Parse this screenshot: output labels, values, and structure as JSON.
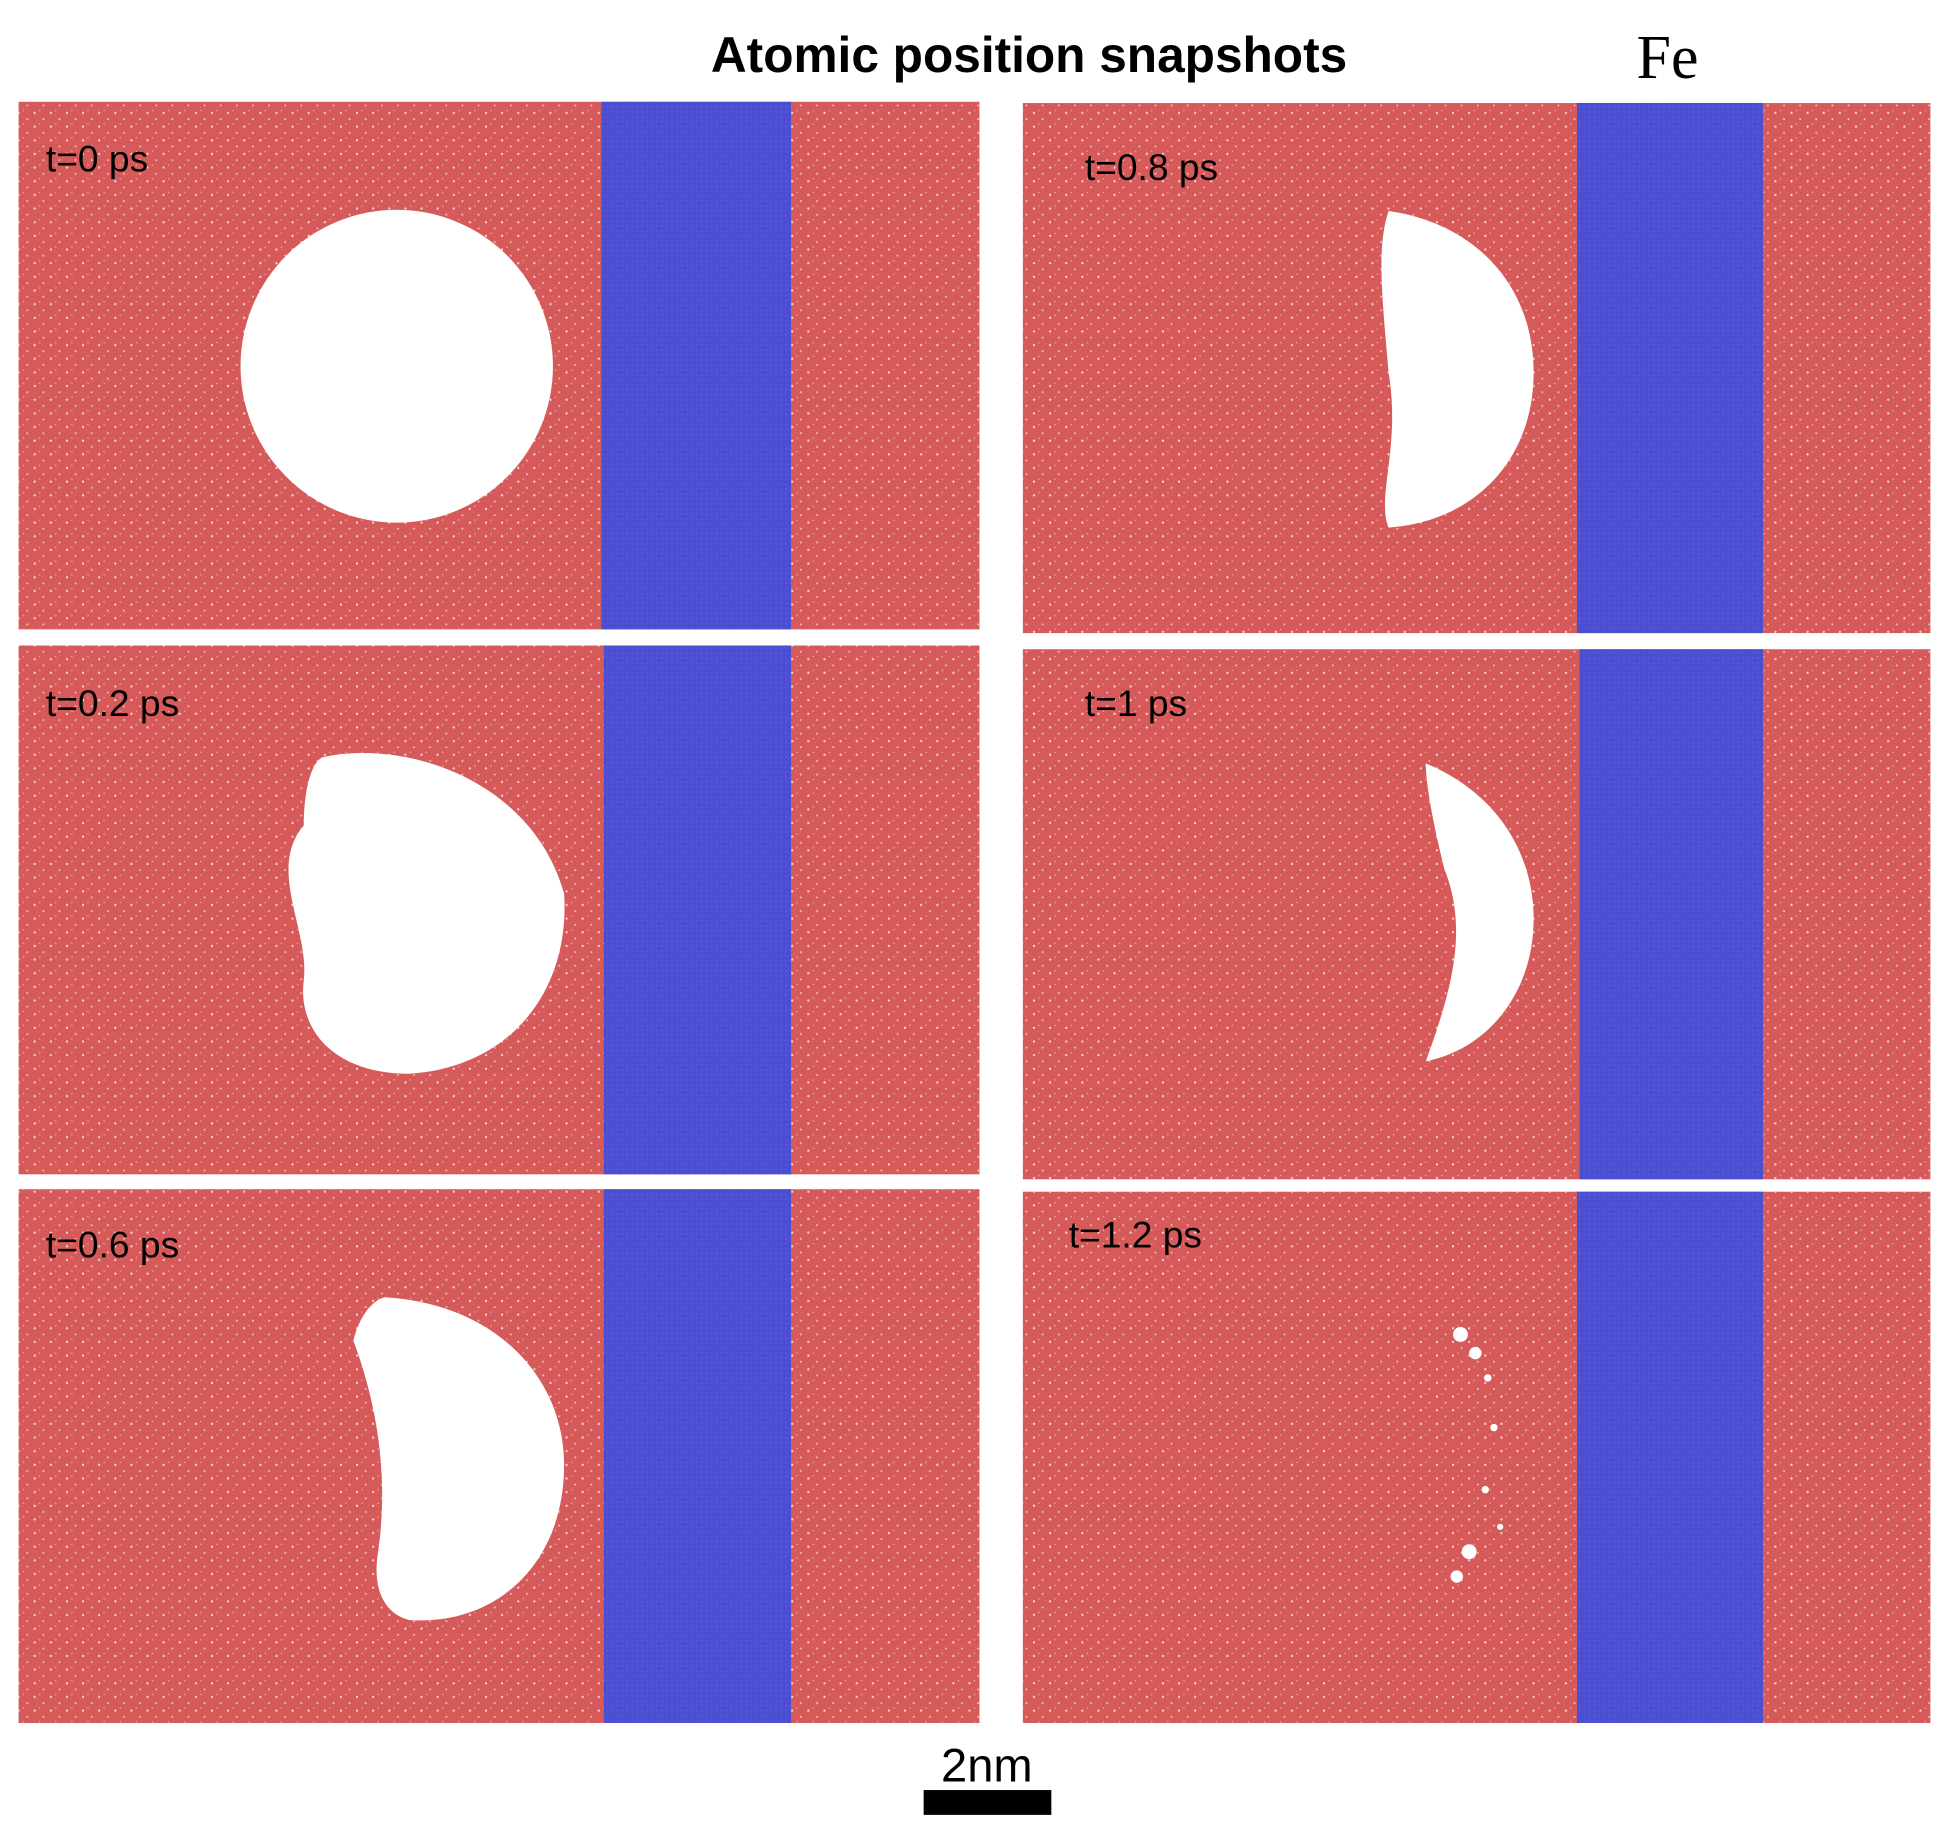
{
  "title": "Atomic position snapshots",
  "element": "Fe",
  "panels": [
    "t=0 ps",
    "t=0.2 ps",
    "t=0.6 ps",
    "t=0.8 ps",
    "t=1 ps",
    "t=1.2 ps"
  ],
  "scale_bar": "2nm"
}
